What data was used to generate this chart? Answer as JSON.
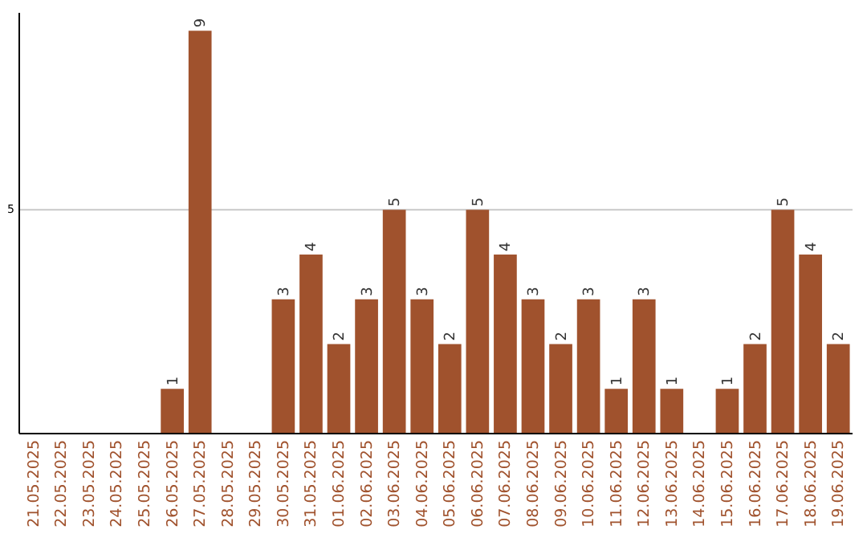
{
  "chart_data": {
    "type": "bar",
    "categories": [
      "21.05.2025",
      "22.05.2025",
      "23.05.2025",
      "24.05.2025",
      "25.05.2025",
      "26.05.2025",
      "27.05.2025",
      "28.05.2025",
      "29.05.2025",
      "30.05.2025",
      "31.05.2025",
      "01.06.2025",
      "02.06.2025",
      "03.06.2025",
      "04.06.2025",
      "05.06.2025",
      "06.06.2025",
      "07.06.2025",
      "08.06.2025",
      "09.06.2025",
      "10.06.2025",
      "11.06.2025",
      "12.06.2025",
      "13.06.2025",
      "14.06.2025",
      "15.06.2025",
      "16.06.2025",
      "17.06.2025",
      "18.06.2025",
      "19.06.2025"
    ],
    "values": [
      0,
      0,
      0,
      0,
      0,
      1,
      9,
      0,
      0,
      3,
      4,
      2,
      3,
      5,
      3,
      2,
      5,
      4,
      3,
      2,
      3,
      1,
      3,
      1,
      0,
      1,
      2,
      5,
      4,
      2
    ],
    "value_labels": [
      null,
      null,
      null,
      null,
      null,
      "1",
      "9",
      null,
      null,
      "3",
      "4",
      "2",
      "3",
      "5",
      "3",
      "2",
      "5",
      "4",
      "3",
      "2",
      "3",
      "1",
      "3",
      "1",
      null,
      "1",
      "2",
      "5",
      "4",
      "2"
    ],
    "color": "#a0522d",
    "ylim": [
      0,
      9.4
    ],
    "yticks": [
      5
    ],
    "grid": "y"
  }
}
